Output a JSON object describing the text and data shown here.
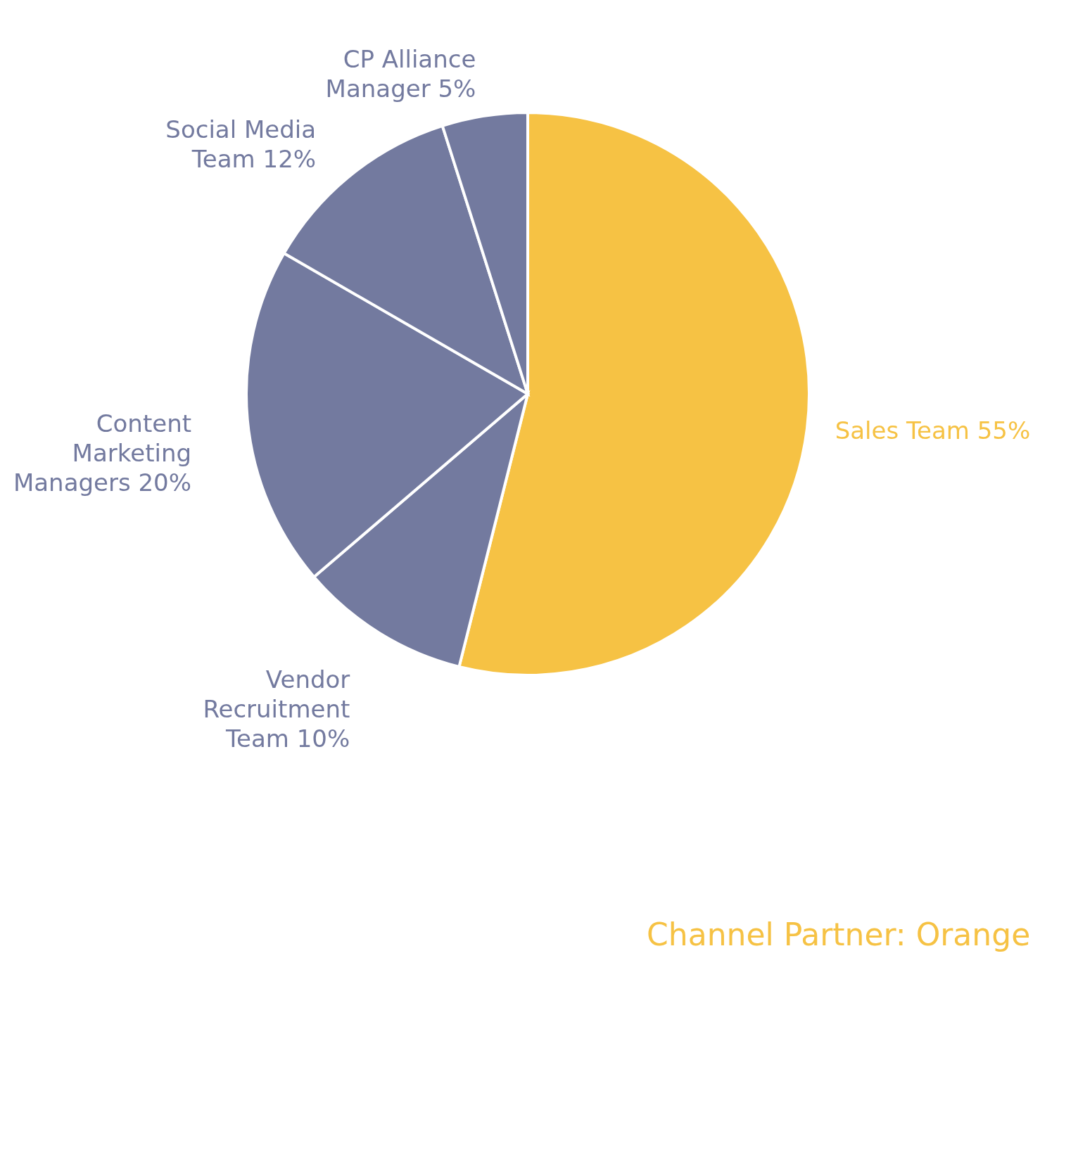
{
  "chart_data": {
    "type": "pie",
    "categories": [
      "Sales Team",
      "Vendor Recruitment Team",
      "Content Marketing Managers",
      "Social Media Team",
      "CP Alliance Manager"
    ],
    "values": [
      55,
      10,
      20,
      12,
      5
    ],
    "value_labels": [
      "55%",
      "10%",
      "20%",
      "12%",
      "5%"
    ],
    "colors": [
      "#f6c244",
      "#737a9f",
      "#737a9f",
      "#737a9f",
      "#737a9f"
    ],
    "annotations": [
      "Channel Partner: Orange"
    ],
    "legend": false
  }
}
